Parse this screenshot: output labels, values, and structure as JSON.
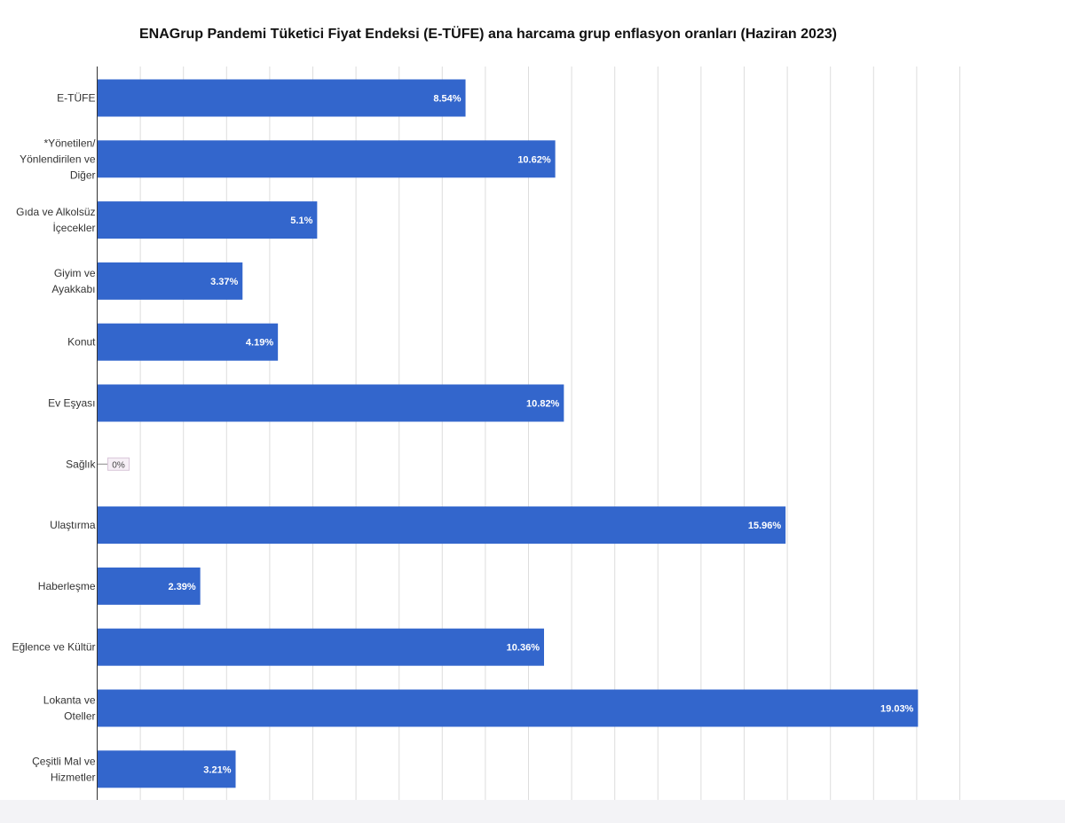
{
  "chart_data": {
    "type": "bar",
    "orientation": "horizontal",
    "title": "ENAGrup Pandemi Tüketici Fiyat Endeksi (E-TÜFE) ana harcama grup enflasyon oranları (Haziran 2023)",
    "categories": [
      [
        "E-TÜFE"
      ],
      [
        "*Yönetilen/",
        "Yönlendirilen ve",
        "Diğer"
      ],
      [
        "Gıda ve Alkolsüz",
        "İçecekler"
      ],
      [
        "Giyim ve",
        "Ayakkabı"
      ],
      [
        "Konut"
      ],
      [
        "Ev Eşyası"
      ],
      [
        "Sağlık"
      ],
      [
        "Ulaştırma"
      ],
      [
        "Haberleşme"
      ],
      [
        "Eğlence ve Kültür"
      ],
      [
        "Lokanta ve",
        "Oteller"
      ],
      [
        "Çeşitli Mal ve",
        "Hizmetler"
      ]
    ],
    "values": [
      8.54,
      10.62,
      5.1,
      3.37,
      4.19,
      10.82,
      0,
      15.96,
      2.39,
      10.36,
      19.03,
      3.21
    ],
    "value_labels": [
      "8.54%",
      "10.62%",
      "5.1%",
      "3.37%",
      "4.19%",
      "10.82%",
      "0%",
      "15.96%",
      "2.39%",
      "10.36%",
      "19.03%",
      "3.21%"
    ],
    "xlim": [
      0,
      20
    ],
    "grid": true,
    "legend": "none",
    "bar_color": "#3366cc"
  }
}
